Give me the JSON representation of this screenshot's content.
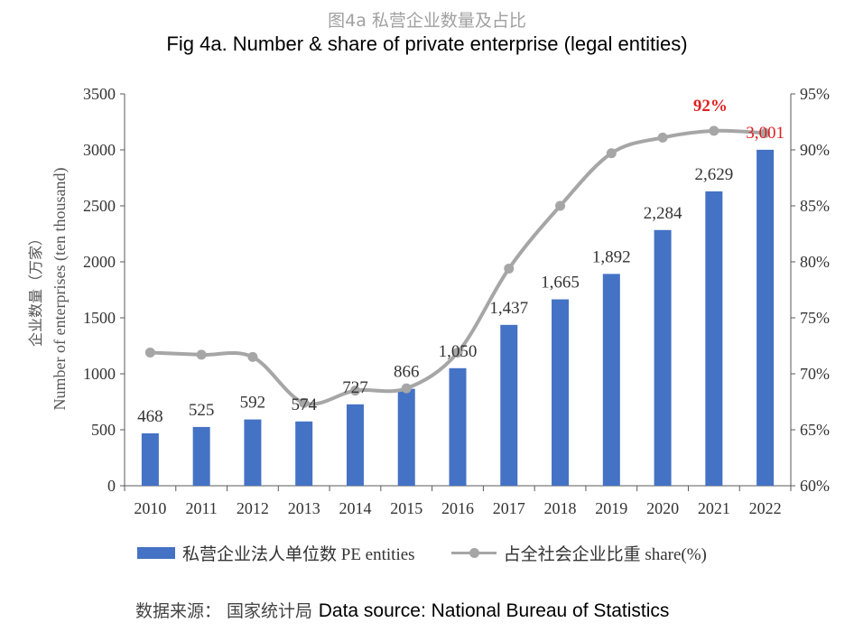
{
  "header": {
    "title_cn": "图4a 私营企业数量及占比",
    "title_en": "Fig 4a. Number & share of private enterprise (legal entities)"
  },
  "footer": {
    "source_cn": "数据来源： 国家统计局",
    "source_en": "Data source: National Bureau of Statistics"
  },
  "legend": {
    "bar_label": "私营企业法人单位数 PE entities",
    "line_label": "占全社会企业比重 share(%)"
  },
  "colors": {
    "bar": "#4472c4",
    "line": "#a6a6a6",
    "highlight": "#e02020",
    "axis": "#595959"
  },
  "chart_data": {
    "type": "bar",
    "title": "Fig 4a. Number & share of private enterprise (legal entities)",
    "categories": [
      "2010",
      "2011",
      "2012",
      "2013",
      "2014",
      "2015",
      "2016",
      "2017",
      "2018",
      "2019",
      "2020",
      "2021",
      "2022"
    ],
    "series": [
      {
        "name": "私营企业法人单位数 PE entities",
        "type": "bar",
        "axis": "left",
        "values": [
          468,
          525,
          592,
          574,
          727,
          866,
          1050,
          1437,
          1665,
          1892,
          2284,
          2629,
          3001
        ],
        "labels": [
          "468",
          "525",
          "592",
          "574",
          "727",
          "866",
          "1,050",
          "1,437",
          "1,665",
          "1,892",
          "2,284",
          "2,629",
          "3,001"
        ]
      },
      {
        "name": "占全社会企业比重 share(%)",
        "type": "line",
        "axis": "right",
        "values": [
          71.9,
          71.7,
          71.5,
          67.4,
          68.5,
          68.7,
          71.9,
          79.4,
          85.0,
          89.7,
          91.1,
          91.7,
          91.5
        ]
      }
    ],
    "ylabel_left_cn": "企业数量（万家）",
    "ylabel_left": "Number of enterprises (ten thousand)",
    "ylim_left": [
      0,
      3500
    ],
    "yticks_left": [
      0,
      500,
      1000,
      1500,
      2000,
      2500,
      3000,
      3500
    ],
    "ylim_right": [
      60,
      95
    ],
    "yticks_right": [
      "60%",
      "65%",
      "70%",
      "75%",
      "80%",
      "85%",
      "90%",
      "95%"
    ],
    "annotation": {
      "text": "92%",
      "category": "2021"
    },
    "highlight_label_category": "2022",
    "grid": false,
    "legend_position": "bottom"
  }
}
